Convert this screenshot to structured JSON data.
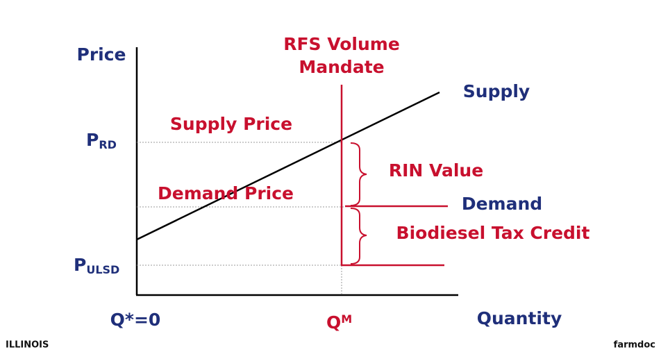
{
  "axes": {
    "y_label": "Price",
    "x_label": "Quantity",
    "origin_label": "Q*=0"
  },
  "mandate": {
    "title_line1": "RFS Volume",
    "title_line2": "Mandate",
    "quantity": {
      "main": "Q",
      "sub": "M"
    }
  },
  "prices": {
    "p_rd": {
      "main": "P",
      "sub": "RD"
    },
    "p_ulsd": {
      "main": "P",
      "sub": "ULSD"
    }
  },
  "curves": {
    "supply": "Supply",
    "demand": "Demand"
  },
  "annotations": {
    "supply_price": "Supply Price",
    "demand_price": "Demand Price",
    "rin_value": "RIN Value",
    "tax_credit": "Biodiesel Tax Credit"
  },
  "footer": {
    "left": "ILLINOIS",
    "right": "farmdoc"
  }
}
